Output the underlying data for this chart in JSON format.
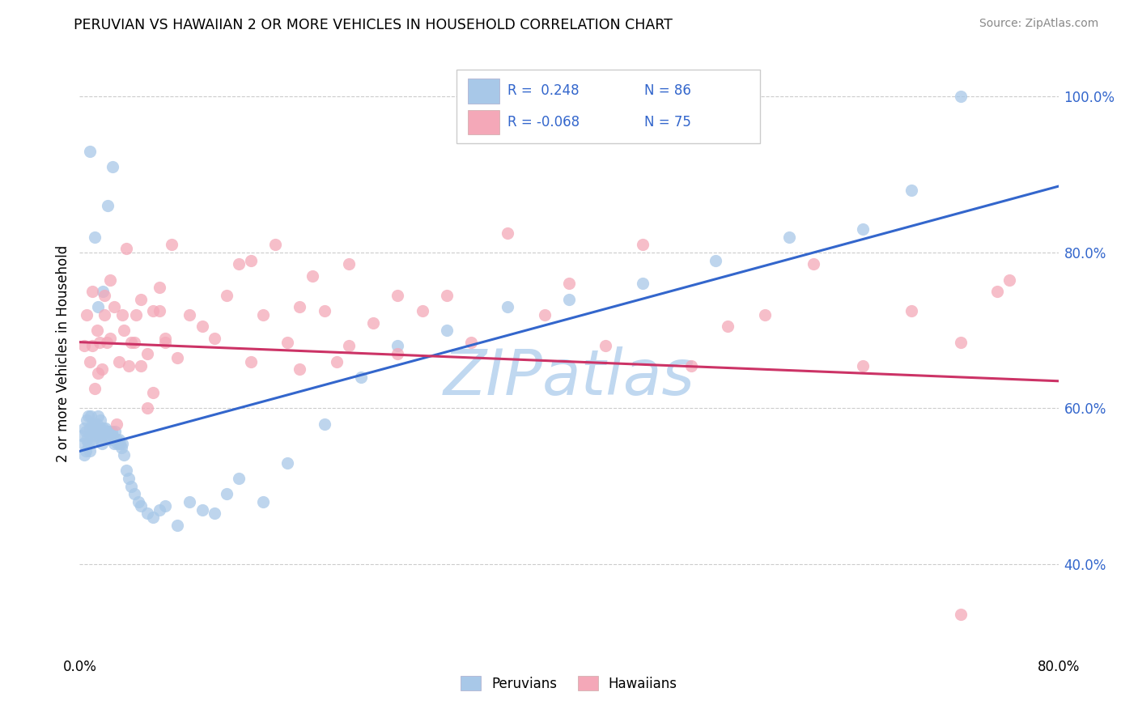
{
  "title": "PERUVIAN VS HAWAIIAN 2 OR MORE VEHICLES IN HOUSEHOLD CORRELATION CHART",
  "source_text": "Source: ZipAtlas.com",
  "ylabel": "2 or more Vehicles in Household",
  "xlim": [
    0.0,
    0.8
  ],
  "ylim": [
    0.29,
    1.05
  ],
  "xtick_first": "0.0%",
  "xtick_last": "80.0%",
  "yticks_right": [
    0.4,
    0.6,
    0.8,
    1.0
  ],
  "yticklabels_right": [
    "40.0%",
    "60.0%",
    "80.0%",
    "100.0%"
  ],
  "peruvian_color": "#a8c8e8",
  "hawaiian_color": "#f4a8b8",
  "trend_blue": "#3366cc",
  "trend_pink": "#cc3366",
  "watermark": "ZIPatlas",
  "watermark_color": "#c0d8f0",
  "legend_label1": "Peruvians",
  "legend_label2": "Hawaiians",
  "blue_line_x": [
    0.0,
    0.8
  ],
  "blue_line_y": [
    0.545,
    0.885
  ],
  "pink_line_x": [
    0.0,
    0.8
  ],
  "pink_line_y": [
    0.685,
    0.635
  ],
  "peruvian_scatter_x": [
    0.002,
    0.003,
    0.004,
    0.004,
    0.005,
    0.005,
    0.006,
    0.006,
    0.007,
    0.007,
    0.008,
    0.008,
    0.009,
    0.009,
    0.01,
    0.01,
    0.011,
    0.011,
    0.012,
    0.012,
    0.013,
    0.013,
    0.014,
    0.014,
    0.015,
    0.015,
    0.016,
    0.016,
    0.017,
    0.017,
    0.018,
    0.018,
    0.019,
    0.02,
    0.021,
    0.022,
    0.023,
    0.024,
    0.025,
    0.026,
    0.027,
    0.028,
    0.029,
    0.03,
    0.031,
    0.032,
    0.033,
    0.034,
    0.035,
    0.036,
    0.038,
    0.04,
    0.042,
    0.045,
    0.048,
    0.05,
    0.055,
    0.06,
    0.065,
    0.07,
    0.08,
    0.09,
    0.1,
    0.11,
    0.12,
    0.13,
    0.15,
    0.17,
    0.2,
    0.23,
    0.26,
    0.3,
    0.35,
    0.4,
    0.46,
    0.52,
    0.58,
    0.64,
    0.68,
    0.72,
    0.019,
    0.023,
    0.027,
    0.015,
    0.012,
    0.008
  ],
  "peruvian_scatter_y": [
    0.565,
    0.555,
    0.575,
    0.54,
    0.57,
    0.545,
    0.56,
    0.585,
    0.555,
    0.59,
    0.545,
    0.575,
    0.565,
    0.59,
    0.57,
    0.58,
    0.575,
    0.56,
    0.57,
    0.58,
    0.575,
    0.565,
    0.57,
    0.58,
    0.575,
    0.59,
    0.57,
    0.56,
    0.575,
    0.585,
    0.555,
    0.565,
    0.575,
    0.57,
    0.575,
    0.57,
    0.565,
    0.57,
    0.56,
    0.57,
    0.565,
    0.555,
    0.57,
    0.56,
    0.555,
    0.56,
    0.555,
    0.55,
    0.555,
    0.54,
    0.52,
    0.51,
    0.5,
    0.49,
    0.48,
    0.475,
    0.465,
    0.46,
    0.47,
    0.475,
    0.45,
    0.48,
    0.47,
    0.465,
    0.49,
    0.51,
    0.48,
    0.53,
    0.58,
    0.64,
    0.68,
    0.7,
    0.73,
    0.74,
    0.76,
    0.79,
    0.82,
    0.83,
    0.88,
    1.0,
    0.75,
    0.86,
    0.91,
    0.73,
    0.82,
    0.93
  ],
  "hawaiian_scatter_x": [
    0.004,
    0.006,
    0.008,
    0.01,
    0.012,
    0.014,
    0.016,
    0.018,
    0.02,
    0.022,
    0.025,
    0.028,
    0.032,
    0.036,
    0.04,
    0.045,
    0.05,
    0.055,
    0.06,
    0.065,
    0.07,
    0.075,
    0.08,
    0.09,
    0.1,
    0.11,
    0.12,
    0.13,
    0.14,
    0.15,
    0.16,
    0.17,
    0.18,
    0.19,
    0.2,
    0.21,
    0.22,
    0.24,
    0.26,
    0.28,
    0.3,
    0.32,
    0.35,
    0.38,
    0.4,
    0.43,
    0.46,
    0.5,
    0.53,
    0.56,
    0.6,
    0.64,
    0.68,
    0.72,
    0.76,
    0.01,
    0.015,
    0.02,
    0.025,
    0.03,
    0.035,
    0.038,
    0.042,
    0.046,
    0.05,
    0.055,
    0.06,
    0.065,
    0.07,
    0.72,
    0.14,
    0.18,
    0.22,
    0.26,
    0.75
  ],
  "hawaiian_scatter_y": [
    0.68,
    0.72,
    0.66,
    0.75,
    0.625,
    0.7,
    0.685,
    0.65,
    0.72,
    0.685,
    0.69,
    0.73,
    0.66,
    0.7,
    0.655,
    0.685,
    0.74,
    0.67,
    0.725,
    0.755,
    0.69,
    0.81,
    0.665,
    0.72,
    0.705,
    0.69,
    0.745,
    0.785,
    0.66,
    0.72,
    0.81,
    0.685,
    0.65,
    0.77,
    0.725,
    0.66,
    0.785,
    0.71,
    0.67,
    0.725,
    0.745,
    0.685,
    0.825,
    0.72,
    0.76,
    0.68,
    0.81,
    0.655,
    0.705,
    0.72,
    0.785,
    0.655,
    0.725,
    0.685,
    0.765,
    0.68,
    0.645,
    0.745,
    0.765,
    0.58,
    0.72,
    0.805,
    0.685,
    0.72,
    0.655,
    0.6,
    0.62,
    0.725,
    0.685,
    0.335,
    0.79,
    0.73,
    0.68,
    0.745,
    0.75
  ]
}
